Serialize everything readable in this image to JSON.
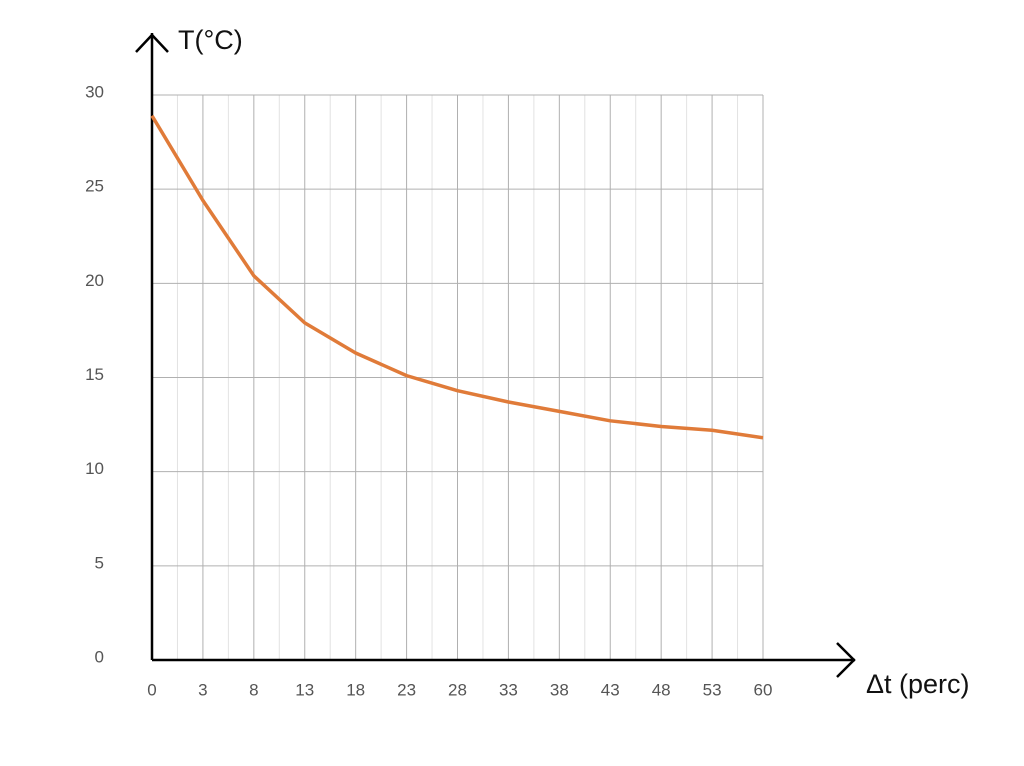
{
  "chart_data": {
    "type": "line",
    "y_label": "T(°C)",
    "x_label": "Δt (perc)",
    "categories": [
      "0",
      "3",
      "8",
      "13",
      "18",
      "23",
      "28",
      "33",
      "38",
      "43",
      "48",
      "53",
      "60"
    ],
    "values": [
      28.9,
      24.4,
      20.4,
      17.9,
      16.3,
      15.1,
      14.3,
      13.7,
      13.2,
      12.7,
      12.4,
      12.2,
      11.8
    ],
    "color": "#e07b39",
    "ylim": [
      0,
      30
    ],
    "yticks": [
      0,
      5,
      10,
      15,
      20,
      25,
      30
    ],
    "grid": true
  }
}
